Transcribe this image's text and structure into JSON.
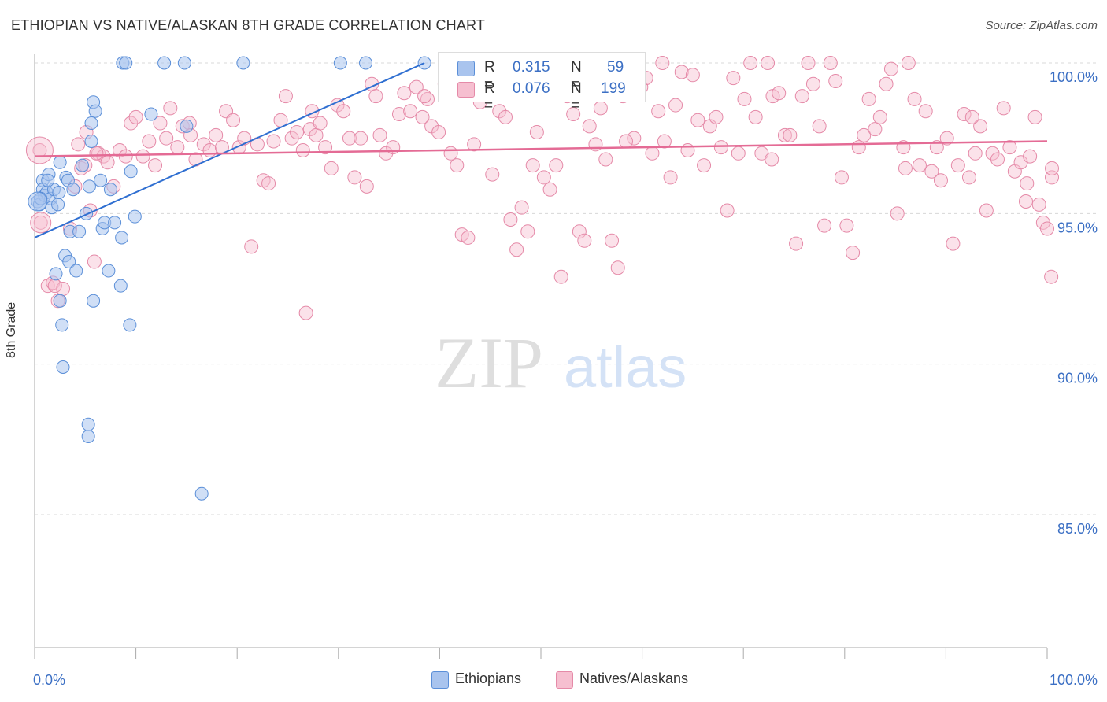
{
  "title": "ETHIOPIAN VS NATIVE/ALASKAN 8TH GRADE CORRELATION CHART",
  "source": "Source: ZipAtlas.com",
  "watermark": {
    "zip": "ZIP",
    "atlas": "atlas"
  },
  "colors": {
    "blue_fill": "#a9c4ee",
    "blue_stroke": "#5b8fd8",
    "blue_line": "#2f6fd1",
    "pink_fill": "#f6bfd0",
    "pink_stroke": "#e58aa8",
    "pink_line": "#e46b95",
    "tick_label": "#3b6fc4",
    "grid": "#d8d8d8"
  },
  "stats": {
    "ethiopians": {
      "r_label": "R =",
      "r": "0.315",
      "n_label": "N =",
      "n": "59"
    },
    "natives": {
      "r_label": "R =",
      "r": "0.076",
      "n_label": "N =",
      "n": "199"
    }
  },
  "legend": {
    "ethiopians": "Ethiopians",
    "natives": "Natives/Alaskans"
  },
  "chart_data": {
    "type": "scatter",
    "title": "ETHIOPIAN VS NATIVE/ALASKAN 8TH GRADE CORRELATION CHART",
    "xlabel": "",
    "ylabel": "8th Grade",
    "xlim": [
      0,
      100
    ],
    "ylim": [
      80.5,
      100.5
    ],
    "x_tick_labels": [
      "0.0%",
      "100.0%"
    ],
    "y_ticks": [
      85,
      90,
      95,
      100
    ],
    "y_tick_labels": [
      "85.0%",
      "90.0%",
      "95.0%",
      "100.0%"
    ],
    "grid": true,
    "legend_position": "bottom",
    "series": [
      {
        "name": "Ethiopians",
        "color": "#a9c4ee",
        "trend": {
          "x": [
            0,
            38.5
          ],
          "y": [
            94.2,
            100.0
          ]
        },
        "points": [
          [
            0.3,
            95.4
          ],
          [
            0.5,
            95.3
          ],
          [
            0.8,
            96.1
          ],
          [
            0.8,
            95.8
          ],
          [
            1.0,
            95.6
          ],
          [
            1.2,
            95.7
          ],
          [
            1.4,
            96.3
          ],
          [
            1.6,
            95.5
          ],
          [
            1.7,
            95.2
          ],
          [
            1.9,
            95.8
          ],
          [
            2.1,
            93.0
          ],
          [
            2.3,
            95.3
          ],
          [
            2.5,
            96.7
          ],
          [
            2.5,
            92.1
          ],
          [
            2.7,
            91.3
          ],
          [
            2.8,
            89.9
          ],
          [
            3.0,
            93.6
          ],
          [
            3.1,
            96.2
          ],
          [
            3.3,
            96.1
          ],
          [
            3.4,
            93.4
          ],
          [
            3.5,
            94.4
          ],
          [
            3.8,
            95.8
          ],
          [
            4.1,
            93.1
          ],
          [
            4.4,
            94.4
          ],
          [
            4.7,
            96.6
          ],
          [
            5.1,
            95.0
          ],
          [
            5.3,
            88.0
          ],
          [
            5.3,
            87.6
          ],
          [
            5.4,
            95.9
          ],
          [
            5.6,
            98.0
          ],
          [
            5.8,
            98.7
          ],
          [
            6.0,
            98.4
          ],
          [
            6.5,
            96.1
          ],
          [
            6.7,
            94.5
          ],
          [
            6.9,
            94.7
          ],
          [
            7.3,
            93.1
          ],
          [
            7.5,
            95.8
          ],
          [
            7.9,
            94.7
          ],
          [
            8.5,
            92.6
          ],
          [
            8.6,
            94.2
          ],
          [
            8.7,
            100.0
          ],
          [
            9.0,
            100.0
          ],
          [
            9.4,
            91.3
          ],
          [
            9.5,
            96.4
          ],
          [
            9.9,
            94.9
          ],
          [
            11.5,
            98.3
          ],
          [
            12.8,
            100.0
          ],
          [
            14.8,
            100.0
          ],
          [
            15.0,
            97.9
          ],
          [
            16.5,
            85.7
          ],
          [
            20.6,
            100.0
          ],
          [
            30.2,
            100.0
          ],
          [
            32.7,
            100.0
          ],
          [
            38.5,
            100.0
          ],
          [
            0.6,
            95.5
          ],
          [
            5.8,
            92.1
          ],
          [
            5.6,
            97.4
          ],
          [
            1.3,
            96.1
          ],
          [
            2.4,
            95.7
          ]
        ]
      },
      {
        "name": "Natives/Alaskans",
        "color": "#f6bfd0",
        "trend": {
          "x": [
            0,
            100
          ],
          "y": [
            96.9,
            97.4
          ]
        },
        "points": [
          [
            0.5,
            97.1
          ],
          [
            0.6,
            94.7
          ],
          [
            1.3,
            92.6
          ],
          [
            1.8,
            92.7
          ],
          [
            2.3,
            92.1
          ],
          [
            2.8,
            92.5
          ],
          [
            3.5,
            94.5
          ],
          [
            4.0,
            95.9
          ],
          [
            4.3,
            97.3
          ],
          [
            4.6,
            96.5
          ],
          [
            5.1,
            97.7
          ],
          [
            5.5,
            95.1
          ],
          [
            5.9,
            93.4
          ],
          [
            6.3,
            97.0
          ],
          [
            6.8,
            96.9
          ],
          [
            7.2,
            96.7
          ],
          [
            7.8,
            95.9
          ],
          [
            8.4,
            97.1
          ],
          [
            9.0,
            96.9
          ],
          [
            9.5,
            98.0
          ],
          [
            10.0,
            98.2
          ],
          [
            10.7,
            96.9
          ],
          [
            11.3,
            97.4
          ],
          [
            11.9,
            96.6
          ],
          [
            12.4,
            98.0
          ],
          [
            13.0,
            97.5
          ],
          [
            13.4,
            98.5
          ],
          [
            14.1,
            97.2
          ],
          [
            14.6,
            97.9
          ],
          [
            15.3,
            98.0
          ],
          [
            15.9,
            96.8
          ],
          [
            16.7,
            97.3
          ],
          [
            17.3,
            97.1
          ],
          [
            17.9,
            97.6
          ],
          [
            18.5,
            97.2
          ],
          [
            18.9,
            98.4
          ],
          [
            19.6,
            98.1
          ],
          [
            20.2,
            97.2
          ],
          [
            20.7,
            97.5
          ],
          [
            21.4,
            93.9
          ],
          [
            22.0,
            97.3
          ],
          [
            22.6,
            96.1
          ],
          [
            23.1,
            96.0
          ],
          [
            23.6,
            97.4
          ],
          [
            24.3,
            98.1
          ],
          [
            24.8,
            98.9
          ],
          [
            25.4,
            97.5
          ],
          [
            25.9,
            97.7
          ],
          [
            26.5,
            97.1
          ],
          [
            26.8,
            91.7
          ],
          [
            27.2,
            97.8
          ],
          [
            27.8,
            97.6
          ],
          [
            28.2,
            98.0
          ],
          [
            28.7,
            97.2
          ],
          [
            29.3,
            96.5
          ],
          [
            29.9,
            98.6
          ],
          [
            30.5,
            98.4
          ],
          [
            31.1,
            97.5
          ],
          [
            31.6,
            96.2
          ],
          [
            32.2,
            97.5
          ],
          [
            32.8,
            95.9
          ],
          [
            33.3,
            99.3
          ],
          [
            33.7,
            98.9
          ],
          [
            34.1,
            97.6
          ],
          [
            34.7,
            97.0
          ],
          [
            35.4,
            97.2
          ],
          [
            36.0,
            98.3
          ],
          [
            36.5,
            99.0
          ],
          [
            37.1,
            98.4
          ],
          [
            37.7,
            99.2
          ],
          [
            38.3,
            98.2
          ],
          [
            38.8,
            98.8
          ],
          [
            39.2,
            97.9
          ],
          [
            39.9,
            97.7
          ],
          [
            40.5,
            99.3
          ],
          [
            41.1,
            97.0
          ],
          [
            41.7,
            96.6
          ],
          [
            42.2,
            94.3
          ],
          [
            42.8,
            94.2
          ],
          [
            43.4,
            97.3
          ],
          [
            44.0,
            98.7
          ],
          [
            44.5,
            99.1
          ],
          [
            44.9,
            99.4
          ],
          [
            45.5,
            99.8
          ],
          [
            45.9,
            98.4
          ],
          [
            46.5,
            98.2
          ],
          [
            47.0,
            94.8
          ],
          [
            47.6,
            93.8
          ],
          [
            48.1,
            95.2
          ],
          [
            48.7,
            94.4
          ],
          [
            49.2,
            96.6
          ],
          [
            49.6,
            97.7
          ],
          [
            50.3,
            96.2
          ],
          [
            50.9,
            95.8
          ],
          [
            51.5,
            96.6
          ],
          [
            52.0,
            92.9
          ],
          [
            52.6,
            98.9
          ],
          [
            53.2,
            98.3
          ],
          [
            53.8,
            94.4
          ],
          [
            54.3,
            94.1
          ],
          [
            54.8,
            97.9
          ],
          [
            55.4,
            97.3
          ],
          [
            55.9,
            98.5
          ],
          [
            56.4,
            96.8
          ],
          [
            57.0,
            94.1
          ],
          [
            57.6,
            93.2
          ],
          [
            58.1,
            98.9
          ],
          [
            58.7,
            99.3
          ],
          [
            59.2,
            97.5
          ],
          [
            59.9,
            99.2
          ],
          [
            60.4,
            99.5
          ],
          [
            61.0,
            97.0
          ],
          [
            61.6,
            98.4
          ],
          [
            62.2,
            97.4
          ],
          [
            62.8,
            96.2
          ],
          [
            63.3,
            98.6
          ],
          [
            63.9,
            99.7
          ],
          [
            64.5,
            97.1
          ],
          [
            65.0,
            99.6
          ],
          [
            65.5,
            98.1
          ],
          [
            66.1,
            96.6
          ],
          [
            66.7,
            97.9
          ],
          [
            67.3,
            98.2
          ],
          [
            67.8,
            97.2
          ],
          [
            68.4,
            95.1
          ],
          [
            69.0,
            99.5
          ],
          [
            69.5,
            97.0
          ],
          [
            70.1,
            98.8
          ],
          [
            70.7,
            100.0
          ],
          [
            71.2,
            98.2
          ],
          [
            71.8,
            97.0
          ],
          [
            72.4,
            100.0
          ],
          [
            72.9,
            98.9
          ],
          [
            73.5,
            99.0
          ],
          [
            74.1,
            97.6
          ],
          [
            74.6,
            97.6
          ],
          [
            75.2,
            94.0
          ],
          [
            75.8,
            98.9
          ],
          [
            76.4,
            100.0
          ],
          [
            76.9,
            99.3
          ],
          [
            77.5,
            97.9
          ],
          [
            78.0,
            94.6
          ],
          [
            78.6,
            100.0
          ],
          [
            79.1,
            99.4
          ],
          [
            79.7,
            96.2
          ],
          [
            80.2,
            94.6
          ],
          [
            80.8,
            93.7
          ],
          [
            81.4,
            97.2
          ],
          [
            81.9,
            97.6
          ],
          [
            82.4,
            98.8
          ],
          [
            83.0,
            97.8
          ],
          [
            83.5,
            98.2
          ],
          [
            84.1,
            99.3
          ],
          [
            84.6,
            99.8
          ],
          [
            85.2,
            95.0
          ],
          [
            85.8,
            97.2
          ],
          [
            86.3,
            100.0
          ],
          [
            86.9,
            98.8
          ],
          [
            87.4,
            96.6
          ],
          [
            88.0,
            98.4
          ],
          [
            88.6,
            96.4
          ],
          [
            89.1,
            97.2
          ],
          [
            89.5,
            96.1
          ],
          [
            90.1,
            97.5
          ],
          [
            90.7,
            94.0
          ],
          [
            91.2,
            96.6
          ],
          [
            91.8,
            98.3
          ],
          [
            92.3,
            96.2
          ],
          [
            92.9,
            97.0
          ],
          [
            93.4,
            97.9
          ],
          [
            94.0,
            95.1
          ],
          [
            94.6,
            97.0
          ],
          [
            95.1,
            96.8
          ],
          [
            95.7,
            98.5
          ],
          [
            96.3,
            97.2
          ],
          [
            96.8,
            96.4
          ],
          [
            97.4,
            96.7
          ],
          [
            97.9,
            95.4
          ],
          [
            98.3,
            96.9
          ],
          [
            98.8,
            98.2
          ],
          [
            99.2,
            95.3
          ],
          [
            99.6,
            94.7
          ],
          [
            100.0,
            94.5
          ],
          [
            100.4,
            92.9
          ],
          [
            100.8,
            96.2
          ],
          [
            101.2,
            96.5
          ],
          [
            5.0,
            96.6
          ],
          [
            15.4,
            97.6
          ],
          [
            27.4,
            98.4
          ],
          [
            38.5,
            98.9
          ],
          [
            45.2,
            96.3
          ],
          [
            58.4,
            97.4
          ],
          [
            62.0,
            100.0
          ],
          [
            72.8,
            96.8
          ],
          [
            86.0,
            96.5
          ],
          [
            92.6,
            98.2
          ],
          [
            98.0,
            96.0
          ],
          [
            2.0,
            92.6
          ],
          [
            6.1,
            97.0
          ]
        ]
      }
    ]
  }
}
